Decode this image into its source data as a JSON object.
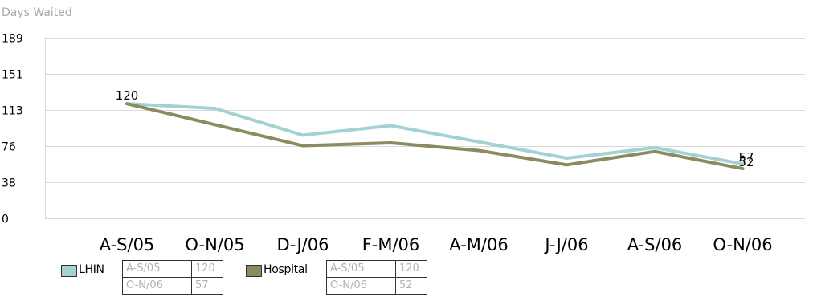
{
  "chart_data": {
    "type": "line",
    "ylabel": "Days Waited",
    "categories": [
      "A-S/05",
      "O-N/05",
      "D-J/06",
      "F-M/06",
      "A-M/06",
      "J-J/06",
      "A-S/06",
      "O-N/06"
    ],
    "yticks": [
      0,
      38,
      76,
      113,
      151,
      189
    ],
    "ylim": [
      0,
      189
    ],
    "grid": true,
    "series": [
      {
        "name": "LHIN",
        "color": "#a3d2d3",
        "values": [
          120,
          115,
          87,
          97,
          80,
          63,
          74,
          57
        ]
      },
      {
        "name": "Hospital",
        "color": "#8c8a5e",
        "values": [
          120,
          98,
          76,
          79,
          71,
          56,
          70,
          52
        ]
      }
    ],
    "data_labels": [
      {
        "series": 0,
        "index": 0,
        "text": "120"
      },
      {
        "series": 0,
        "index": 7,
        "text": "57"
      },
      {
        "series": 1,
        "index": 7,
        "text": "52"
      }
    ]
  },
  "legend": [
    {
      "name": "LHIN",
      "color": "#a3d2d3",
      "rows": [
        [
          "A-S/05",
          "120"
        ],
        [
          "O-N/06",
          "57"
        ]
      ]
    },
    {
      "name": "Hospital",
      "color": "#8c8a5e",
      "rows": [
        [
          "A-S/05",
          "120"
        ],
        [
          "O-N/06",
          "52"
        ]
      ]
    }
  ]
}
